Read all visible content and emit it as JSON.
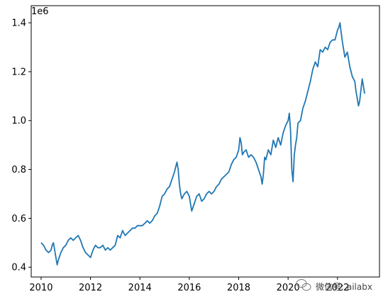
{
  "chart_data": {
    "type": "line",
    "title": "",
    "xlabel": "",
    "ylabel": "",
    "y_offset_label": "1e6",
    "xlim": [
      2009.6,
      2023.7
    ],
    "ylim": [
      0.36,
      1.47
    ],
    "x_ticks": [
      2010,
      2012,
      2014,
      2016,
      2018,
      2020,
      2022
    ],
    "x_tick_labels": [
      "2010",
      "2012",
      "2014",
      "2016",
      "2018",
      "2020",
      "2022"
    ],
    "y_ticks": [
      0.4,
      0.6,
      0.8,
      1.0,
      1.2,
      1.4
    ],
    "y_tick_labels": [
      "0.4",
      "0.6",
      "0.8",
      "1.0",
      "1.2",
      "1.4"
    ],
    "grid": false,
    "legend": "none",
    "series": [
      {
        "color": "#1f77b4",
        "x": [
          2010.0,
          2010.1,
          2010.2,
          2010.3,
          2010.4,
          2010.45,
          2010.5,
          2010.55,
          2010.6,
          2010.65,
          2010.7,
          2010.8,
          2010.9,
          2011.0,
          2011.1,
          2011.2,
          2011.3,
          2011.4,
          2011.5,
          2011.6,
          2011.7,
          2011.8,
          2011.9,
          2012.0,
          2012.1,
          2012.2,
          2012.3,
          2012.4,
          2012.5,
          2012.6,
          2012.7,
          2012.8,
          2012.9,
          2013.0,
          2013.1,
          2013.2,
          2013.3,
          2013.4,
          2013.5,
          2013.6,
          2013.7,
          2013.8,
          2013.9,
          2014.0,
          2014.1,
          2014.2,
          2014.3,
          2014.4,
          2014.5,
          2014.6,
          2014.7,
          2014.8,
          2014.9,
          2015.0,
          2015.1,
          2015.2,
          2015.3,
          2015.4,
          2015.45,
          2015.5,
          2015.55,
          2015.6,
          2015.65,
          2015.7,
          2015.8,
          2015.9,
          2016.0,
          2016.05,
          2016.1,
          2016.2,
          2016.3,
          2016.4,
          2016.5,
          2016.6,
          2016.7,
          2016.8,
          2016.9,
          2017.0,
          2017.1,
          2017.2,
          2017.3,
          2017.4,
          2017.5,
          2017.6,
          2017.7,
          2017.8,
          2017.9,
          2018.0,
          2018.05,
          2018.1,
          2018.15,
          2018.2,
          2018.3,
          2018.4,
          2018.5,
          2018.6,
          2018.7,
          2018.8,
          2018.9,
          2018.95,
          2019.0,
          2019.05,
          2019.1,
          2019.2,
          2019.3,
          2019.4,
          2019.5,
          2019.6,
          2019.7,
          2019.8,
          2019.9,
          2020.0,
          2020.05,
          2020.1,
          2020.15,
          2020.2,
          2020.25,
          2020.3,
          2020.35,
          2020.4,
          2020.5,
          2020.6,
          2020.7,
          2020.8,
          2020.9,
          2021.0,
          2021.1,
          2021.2,
          2021.3,
          2021.4,
          2021.5,
          2021.6,
          2021.7,
          2021.8,
          2021.9,
          2022.0,
          2022.05,
          2022.1,
          2022.15,
          2022.2,
          2022.3,
          2022.4,
          2022.5,
          2022.6,
          2022.7,
          2022.75,
          2022.8,
          2022.85,
          2022.9,
          2023.0,
          2023.1
        ],
        "y": [
          0.5,
          0.49,
          0.47,
          0.46,
          0.47,
          0.49,
          0.5,
          0.47,
          0.44,
          0.41,
          0.43,
          0.46,
          0.48,
          0.49,
          0.51,
          0.52,
          0.51,
          0.52,
          0.53,
          0.51,
          0.48,
          0.46,
          0.45,
          0.44,
          0.47,
          0.49,
          0.48,
          0.48,
          0.49,
          0.47,
          0.48,
          0.47,
          0.48,
          0.49,
          0.53,
          0.52,
          0.55,
          0.53,
          0.54,
          0.55,
          0.56,
          0.56,
          0.57,
          0.57,
          0.57,
          0.58,
          0.59,
          0.58,
          0.59,
          0.61,
          0.62,
          0.65,
          0.69,
          0.7,
          0.72,
          0.73,
          0.76,
          0.79,
          0.81,
          0.83,
          0.8,
          0.74,
          0.7,
          0.68,
          0.7,
          0.71,
          0.69,
          0.66,
          0.63,
          0.66,
          0.69,
          0.7,
          0.67,
          0.68,
          0.7,
          0.71,
          0.7,
          0.71,
          0.73,
          0.74,
          0.76,
          0.77,
          0.78,
          0.79,
          0.82,
          0.84,
          0.85,
          0.88,
          0.93,
          0.91,
          0.86,
          0.87,
          0.88,
          0.85,
          0.86,
          0.85,
          0.83,
          0.8,
          0.77,
          0.74,
          0.78,
          0.85,
          0.84,
          0.88,
          0.86,
          0.92,
          0.89,
          0.93,
          0.9,
          0.95,
          0.98,
          1.0,
          1.03,
          0.96,
          0.8,
          0.75,
          0.86,
          0.9,
          0.93,
          0.99,
          1.0,
          1.05,
          1.08,
          1.12,
          1.16,
          1.21,
          1.24,
          1.22,
          1.29,
          1.28,
          1.3,
          1.29,
          1.32,
          1.33,
          1.33,
          1.37,
          1.38,
          1.4,
          1.36,
          1.32,
          1.26,
          1.28,
          1.22,
          1.18,
          1.16,
          1.12,
          1.09,
          1.06,
          1.08,
          1.17,
          1.11
        ]
      }
    ]
  },
  "watermark": {
    "icon": "wechat-icon",
    "text": "微信号: ailabx"
  }
}
